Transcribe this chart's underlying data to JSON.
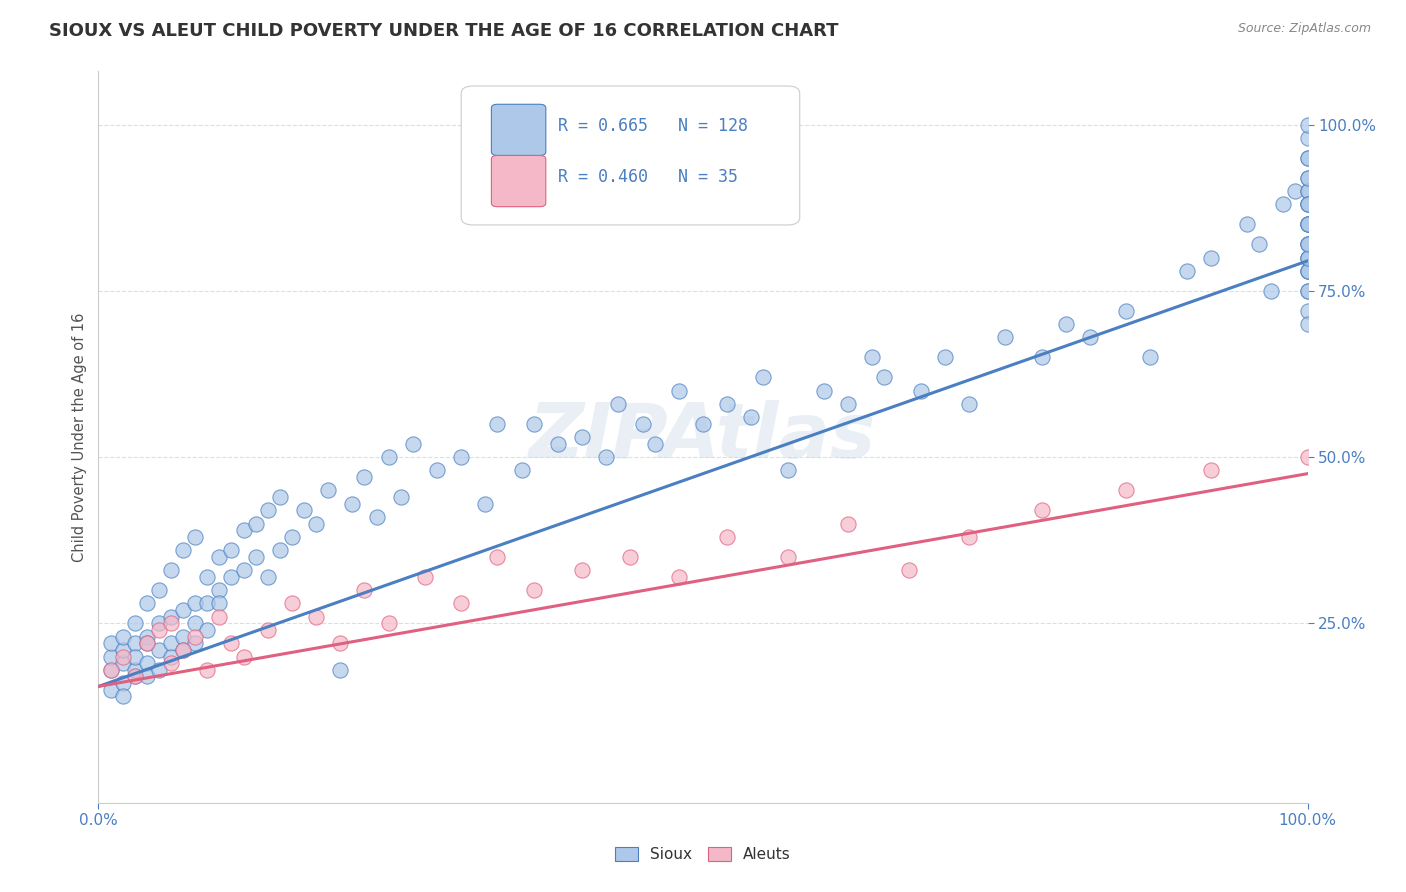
{
  "title": "SIOUX VS ALEUT CHILD POVERTY UNDER THE AGE OF 16 CORRELATION CHART",
  "source": "Source: ZipAtlas.com",
  "ylabel": "Child Poverty Under the Age of 16",
  "sioux_R": 0.665,
  "sioux_N": 128,
  "aleut_R": 0.46,
  "aleut_N": 35,
  "sioux_color": "#adc8e8",
  "aleut_color": "#f5b8c8",
  "sioux_line_color": "#4a7fc1",
  "aleut_line_color": "#e06080",
  "legend_text_color": "#4a7fc1",
  "background_color": "#ffffff",
  "grid_color": "#d0d8e0",
  "watermark_color": "#c8d8e8",
  "tick_label_color": "#4a7fc1",
  "title_color": "#333333",
  "source_color": "#888888",
  "sioux_line_start_y": 0.155,
  "sioux_line_end_y": 0.795,
  "aleut_line_start_y": 0.155,
  "aleut_line_end_y": 0.475,
  "xlim": [
    0.0,
    1.0
  ],
  "ylim": [
    -0.02,
    1.08
  ],
  "yticks": [
    0.25,
    0.5,
    0.75,
    1.0
  ],
  "xticks": [
    0.0,
    1.0
  ],
  "sioux_x": [
    0.01,
    0.01,
    0.01,
    0.01,
    0.02,
    0.02,
    0.02,
    0.02,
    0.02,
    0.03,
    0.03,
    0.03,
    0.03,
    0.03,
    0.04,
    0.04,
    0.04,
    0.04,
    0.04,
    0.05,
    0.05,
    0.05,
    0.05,
    0.06,
    0.06,
    0.06,
    0.06,
    0.07,
    0.07,
    0.07,
    0.07,
    0.08,
    0.08,
    0.08,
    0.08,
    0.09,
    0.09,
    0.09,
    0.1,
    0.1,
    0.1,
    0.11,
    0.11,
    0.12,
    0.12,
    0.13,
    0.13,
    0.14,
    0.14,
    0.15,
    0.15,
    0.16,
    0.17,
    0.18,
    0.19,
    0.2,
    0.21,
    0.22,
    0.23,
    0.24,
    0.25,
    0.26,
    0.28,
    0.3,
    0.32,
    0.33,
    0.35,
    0.36,
    0.38,
    0.4,
    0.42,
    0.43,
    0.45,
    0.46,
    0.48,
    0.5,
    0.52,
    0.54,
    0.55,
    0.57,
    0.6,
    0.62,
    0.64,
    0.65,
    0.68,
    0.7,
    0.72,
    0.75,
    0.78,
    0.8,
    0.82,
    0.85,
    0.87,
    0.9,
    0.92,
    0.95,
    0.96,
    0.97,
    0.98,
    0.99,
    1.0,
    1.0,
    1.0,
    1.0,
    1.0,
    1.0,
    1.0,
    1.0,
    1.0,
    1.0,
    1.0,
    1.0,
    1.0,
    1.0,
    1.0,
    1.0,
    1.0,
    1.0,
    1.0,
    1.0,
    1.0,
    1.0,
    1.0,
    1.0,
    1.0,
    1.0,
    1.0,
    1.0
  ],
  "sioux_y": [
    0.18,
    0.2,
    0.15,
    0.22,
    0.16,
    0.19,
    0.21,
    0.14,
    0.23,
    0.17,
    0.22,
    0.18,
    0.25,
    0.2,
    0.19,
    0.23,
    0.17,
    0.28,
    0.22,
    0.21,
    0.25,
    0.18,
    0.3,
    0.22,
    0.26,
    0.2,
    0.33,
    0.23,
    0.27,
    0.21,
    0.36,
    0.25,
    0.28,
    0.22,
    0.38,
    0.28,
    0.32,
    0.24,
    0.3,
    0.35,
    0.28,
    0.32,
    0.36,
    0.33,
    0.39,
    0.35,
    0.4,
    0.32,
    0.42,
    0.36,
    0.44,
    0.38,
    0.42,
    0.4,
    0.45,
    0.18,
    0.43,
    0.47,
    0.41,
    0.5,
    0.44,
    0.52,
    0.48,
    0.5,
    0.43,
    0.55,
    0.48,
    0.55,
    0.52,
    0.53,
    0.5,
    0.58,
    0.55,
    0.52,
    0.6,
    0.55,
    0.58,
    0.56,
    0.62,
    0.48,
    0.6,
    0.58,
    0.65,
    0.62,
    0.6,
    0.65,
    0.58,
    0.68,
    0.65,
    0.7,
    0.68,
    0.72,
    0.65,
    0.78,
    0.8,
    0.85,
    0.82,
    0.75,
    0.88,
    0.9,
    0.98,
    0.8,
    1.0,
    0.85,
    0.9,
    0.78,
    0.85,
    0.92,
    0.75,
    0.88,
    0.82,
    0.78,
    0.95,
    0.8,
    0.85,
    0.9,
    0.72,
    0.88,
    0.82,
    0.78,
    0.85,
    0.92,
    0.8,
    0.75,
    0.7,
    0.88,
    0.82,
    0.95
  ],
  "aleut_x": [
    0.01,
    0.02,
    0.03,
    0.04,
    0.05,
    0.06,
    0.06,
    0.07,
    0.08,
    0.09,
    0.1,
    0.11,
    0.12,
    0.14,
    0.16,
    0.18,
    0.2,
    0.22,
    0.24,
    0.27,
    0.3,
    0.33,
    0.36,
    0.4,
    0.44,
    0.48,
    0.52,
    0.57,
    0.62,
    0.67,
    0.72,
    0.78,
    0.85,
    0.92,
    1.0
  ],
  "aleut_y": [
    0.18,
    0.2,
    0.17,
    0.22,
    0.24,
    0.19,
    0.25,
    0.21,
    0.23,
    0.18,
    0.26,
    0.22,
    0.2,
    0.24,
    0.28,
    0.26,
    0.22,
    0.3,
    0.25,
    0.32,
    0.28,
    0.35,
    0.3,
    0.33,
    0.35,
    0.32,
    0.38,
    0.35,
    0.4,
    0.33,
    0.38,
    0.42,
    0.45,
    0.48,
    0.5
  ]
}
